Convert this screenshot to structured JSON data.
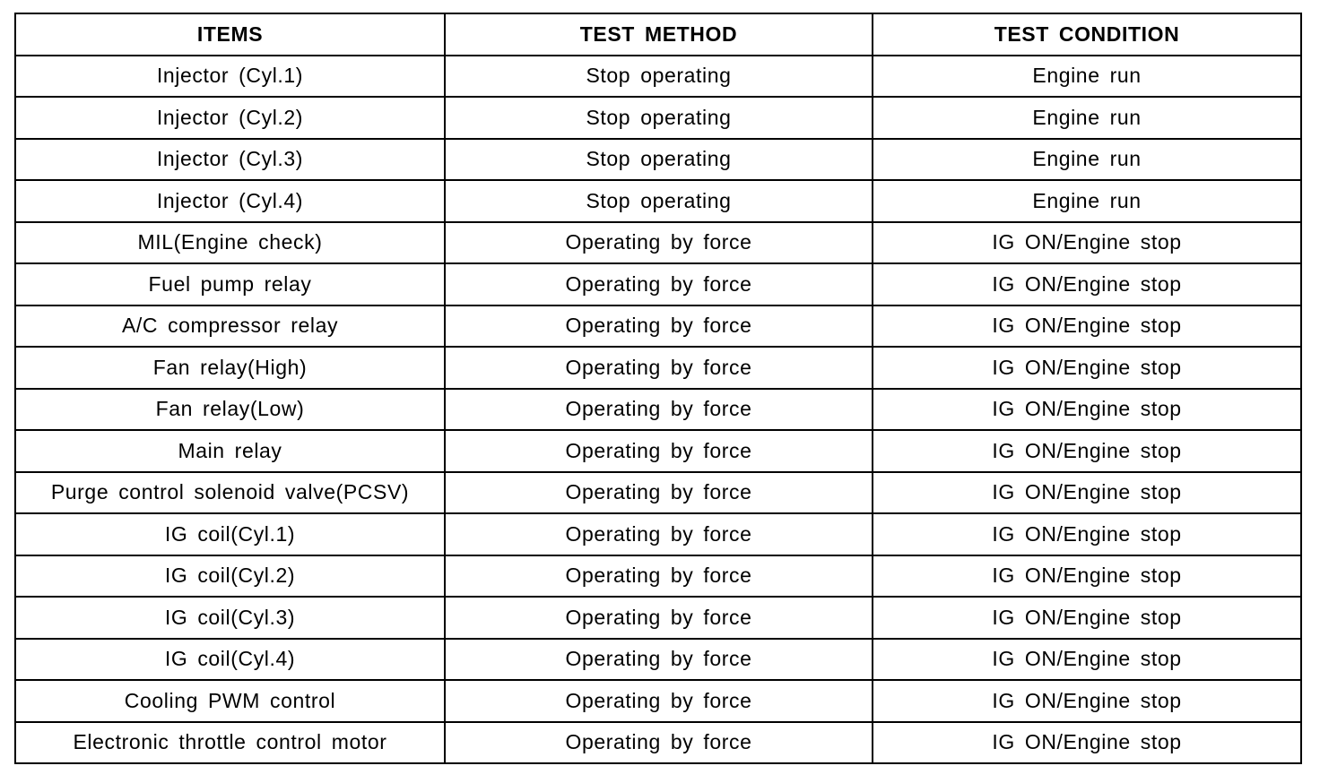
{
  "headers": [
    "ITEMS",
    "TEST METHOD",
    "TEST CONDITION"
  ],
  "rows": [
    [
      "Injector (Cyl.1)",
      "Stop operating",
      "Engine run"
    ],
    [
      "Injector (Cyl.2)",
      "Stop operating",
      "Engine run"
    ],
    [
      "Injector (Cyl.3)",
      "Stop operating",
      "Engine run"
    ],
    [
      "Injector (Cyl.4)",
      "Stop operating",
      "Engine run"
    ],
    [
      "MIL(Engine check)",
      "Operating by force",
      "IG ON/Engine stop"
    ],
    [
      "Fuel pump relay",
      "Operating by force",
      "IG ON/Engine stop"
    ],
    [
      "A/C compressor relay",
      "Operating by force",
      "IG ON/Engine stop"
    ],
    [
      "Fan relay(High)",
      "Operating by force",
      "IG ON/Engine stop"
    ],
    [
      "Fan relay(Low)",
      "Operating by force",
      "IG ON/Engine stop"
    ],
    [
      "Main relay",
      "Operating by force",
      "IG ON/Engine stop"
    ],
    [
      "Purge control solenoid valve(PCSV)",
      "Operating by force",
      "IG ON/Engine stop"
    ],
    [
      "IG coil(Cyl.1)",
      "Operating by force",
      "IG ON/Engine stop"
    ],
    [
      "IG coil(Cyl.2)",
      "Operating by force",
      "IG ON/Engine stop"
    ],
    [
      "IG coil(Cyl.3)",
      "Operating by force",
      "IG ON/Engine stop"
    ],
    [
      "IG coil(Cyl.4)",
      "Operating by force",
      "IG ON/Engine stop"
    ],
    [
      "Cooling PWM control",
      "Operating by force",
      "IG ON/Engine stop"
    ],
    [
      "Electronic throttle control motor",
      "Operating by force",
      "IG ON/Engine stop"
    ]
  ]
}
